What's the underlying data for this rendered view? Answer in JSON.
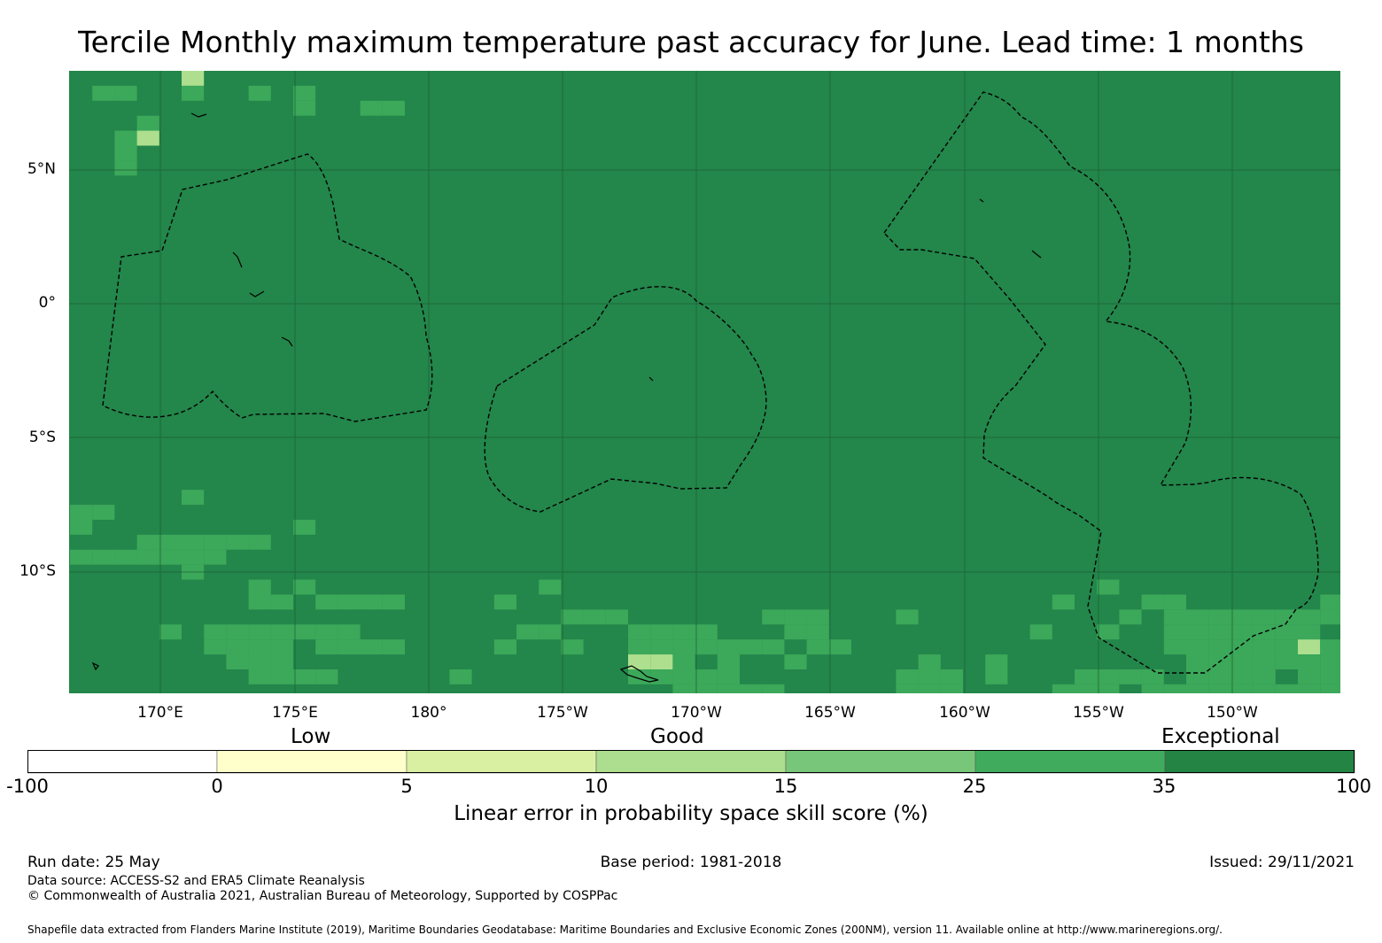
{
  "title": "Tercile Monthly maximum temperature past accuracy for June. Lead time: 1 months",
  "map": {
    "background_color": "#23864a",
    "lat_ticks": [
      "5°N",
      "0°",
      "5°S",
      "10°S"
    ],
    "lon_ticks": [
      "170°E",
      "175°E",
      "180°",
      "175°W",
      "170°W",
      "165°W",
      "160°W",
      "155°W",
      "150°W"
    ],
    "cell_colors": {
      "c35": "#3ca85a",
      "c25": "#7ac576",
      "c15": "#addf8e"
    },
    "boundary_style": "dashed black EEZ outlines",
    "islands": "black coastline outlines"
  },
  "colorbar": {
    "categories": [
      "Low",
      "Good",
      "Exceptional"
    ],
    "colors": [
      "#ffffff",
      "#ffffcc",
      "#d9f0a3",
      "#addd8e",
      "#78c679",
      "#41ab5d",
      "#238443"
    ],
    "ticks": [
      "-100",
      "0",
      "5",
      "10",
      "15",
      "25",
      "35",
      "100"
    ],
    "label": "Linear error in probability space skill score (%)"
  },
  "footer": {
    "run_date": "Run date: 25 May",
    "base_period": "Base period: 1981-2018",
    "issued": "Issued: 29/11/2021",
    "data_source": "Data source: ACCESS-S2 and ERA5 Climate Reanalysis",
    "copyright": "© Commonwealth of Australia 2021, Australian Bureau of Meteorology, Supported by COSPPac",
    "shapefile": "Shapefile data extracted from Flanders Marine Institute (2019), Maritime Boundaries Geodatabase: Maritime Boundaries and Exclusive Economic Zones (200NM), version 11. Available online at http://www.marineregions.org/."
  }
}
